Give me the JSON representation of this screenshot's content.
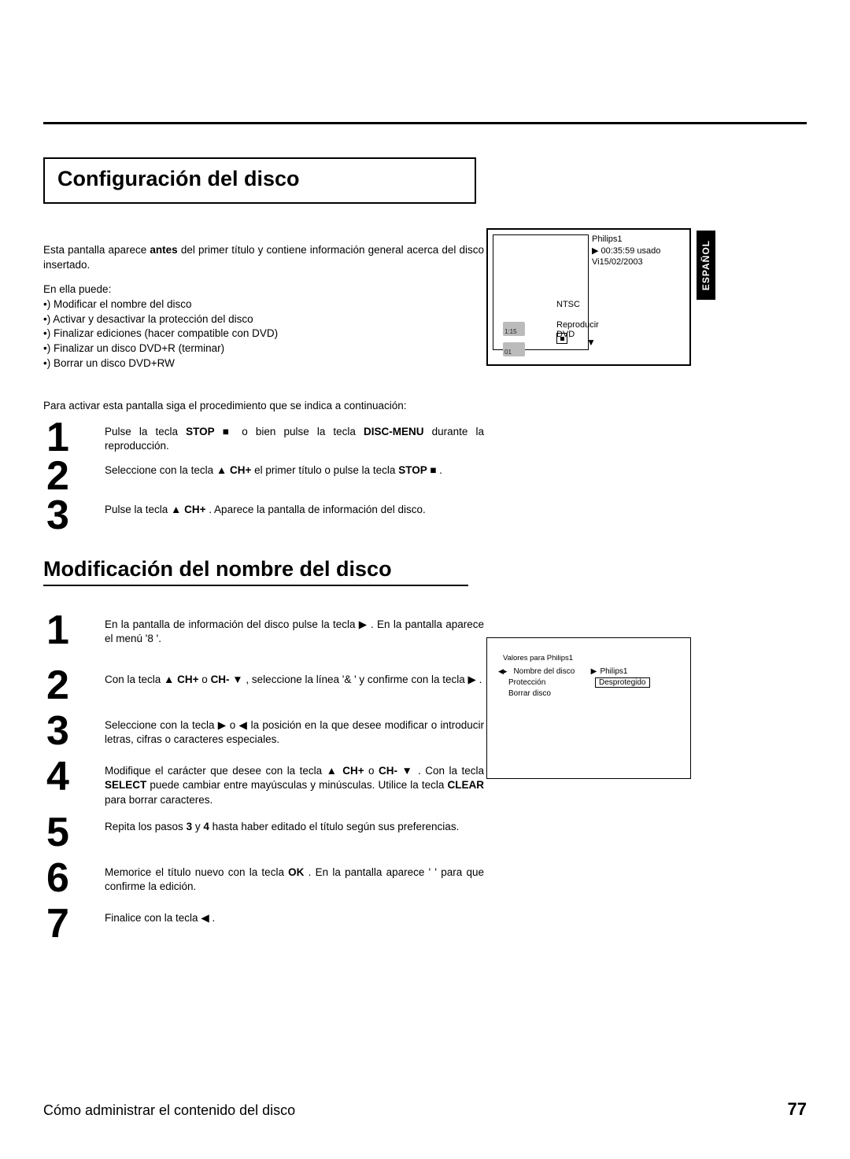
{
  "page_number": "77",
  "footer_text": "Cómo administrar el contenido del disco",
  "language_tab": "ESPAÑOL",
  "section1": {
    "title": "Configuración del disco",
    "intro_line": "Esta pantalla aparece antes del primer título y contiene información general acerca del disco insertado.",
    "intro_bold": "antes",
    "can_do": "En ella puede:",
    "bullets": [
      "•) Modificar el nombre del disco",
      "•) Activar y desactivar la protección del disco",
      "•) Finalizar ediciones (hacer compatible con DVD)",
      "•) Finalizar un disco DVD+R (terminar)",
      "•) Borrar un disco DVD+RW"
    ],
    "follow": "Para activar esta pantalla siga el procedimiento que se indica a continuación:",
    "steps": [
      {
        "n": "1",
        "pre": "Pulse   la   tecla   ",
        "b1": "STOP",
        "mid1": " ■   o   bien   pulse   la   tecla ",
        "b2": "DISC-MENU",
        "tail": " durante la reproducción."
      },
      {
        "n": "2",
        "pre": "Seleccione con la tecla  ",
        "b1": "▲ CH+",
        "mid1": " el primer título o pulse la tecla ",
        "b2": "STOP ■",
        "tail": " ."
      },
      {
        "n": "3",
        "pre": "Pulse la tecla  ",
        "b1": "▲ CH+",
        "mid1": " . Aparece la pantalla de información del disco.",
        "b2": "",
        "tail": ""
      }
    ]
  },
  "section2": {
    "title": "Modificación del nombre del disco",
    "steps": [
      {
        "n": "1",
        "text_a": "En la pantalla de información del disco pulse la tecla  ",
        "sym1": "▶",
        "text_b": " . En la pantalla aparece el menú '8",
        "text_c": "                    '."
      },
      {
        "n": "2",
        "text_a": "Con la tecla  ",
        "b1": "▲ CH+",
        "mid": " o  ",
        "b2": "CH- ▼",
        "text_b": " , seleccione la línea '&",
        "text_c": "                    ' y confirme con la tecla  ",
        "sym2": "▶",
        "tail": " ."
      },
      {
        "n": "3",
        "text_a": "Seleccione con la tecla  ",
        "sym1": "▶",
        "mid": " o  ",
        "sym2": "◀",
        "text_b": " la posición en la que desee modificar o introducir letras, cifras o caracteres especiales."
      },
      {
        "n": "4",
        "text_a": "Modifique el carácter que desee con la tecla  ",
        "b1": "▲ CH+",
        "mid": " o  ",
        "b2": "CH- ▼",
        "text_b": " . Con la tecla  ",
        "b3": "SELECT",
        "text_c": " puede cambiar entre mayúsculas y minúsculas. Utilice la tecla  ",
        "b4": "CLEAR",
        "tail": " para borrar caracteres."
      },
      {
        "n": "5",
        "text_a": "Repita los pasos  ",
        "b1": "3",
        "mid": " y  ",
        "b2": "4",
        "text_b": " hasta haber editado el título según sus preferencias."
      },
      {
        "n": "6",
        "text_a": "Memorice el título nuevo con la tecla  ",
        "b1": "OK",
        "text_b": " . En la pantalla aparece '",
        "text_c": "                                    ' para que confirme la edición."
      },
      {
        "n": "7",
        "text_a": "Finalice con la tecla  ",
        "sym1": "◀",
        "text_b": " ."
      }
    ]
  },
  "screen1": {
    "name": "Philips1",
    "time": "00:35:59 usado",
    "date": "Vi15/02/2003",
    "ntsc": "NTSC",
    "play": "Reproducir DVD",
    "thumb_a": "1:15",
    "thumb_b": "01"
  },
  "screen2": {
    "header": "Valores para Philips1",
    "rows": [
      {
        "label": "Nombre del disco",
        "arrow": "▶",
        "value": "Philips1",
        "boxed": false
      },
      {
        "label": "Protección",
        "arrow": "",
        "value": "Desprotegido",
        "boxed": true
      },
      {
        "label": "Borrar disco",
        "arrow": "",
        "value": "",
        "boxed": false
      }
    ]
  }
}
